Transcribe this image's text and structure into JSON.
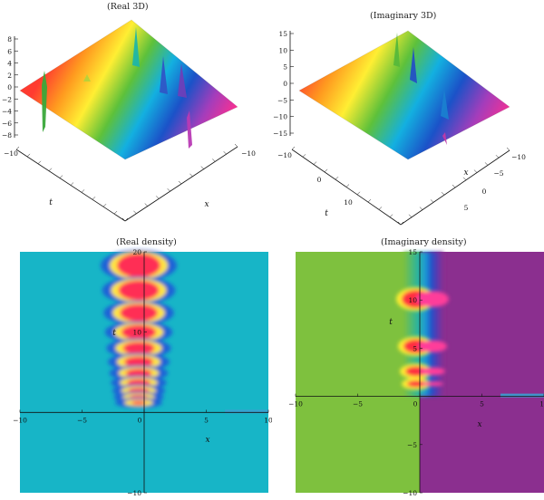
{
  "chart_data": [
    {
      "type": "surface",
      "title": "(Real 3D)",
      "xlabel": "x",
      "ylabel": "t",
      "z_ticks": [
        "8",
        "6",
        "4",
        "2",
        "0",
        "−2",
        "−4",
        "−6",
        "−8"
      ],
      "t_ticks": [
        "−10"
      ],
      "x_ticks": [
        "−10"
      ],
      "palette": [
        "#ff3b30",
        "#ff9a1f",
        "#ffee33",
        "#5ec13a",
        "#13b0e0",
        "#1b52c8",
        "#a43dbb",
        "#ff2f8f"
      ]
    },
    {
      "type": "surface",
      "title": "(Imaginary 3D)",
      "xlabel": "x",
      "ylabel": "t",
      "z_ticks": [
        "15",
        "10",
        "5",
        "0",
        "−5",
        "−10",
        "−15"
      ],
      "t_ticks": [
        "−10",
        "0",
        "10"
      ],
      "x_ticks": [
        "−10",
        "−5",
        "0",
        "5"
      ],
      "palette": [
        "#ff3b30",
        "#ff9a1f",
        "#ffee33",
        "#5ec13a",
        "#13b0e0",
        "#1b52c8",
        "#a43dbb",
        "#ff2f8f"
      ]
    },
    {
      "type": "heatmap",
      "title": "(Real density)",
      "xlabel": "x",
      "ylabel": "t",
      "xlim": [
        -10,
        10
      ],
      "ylim": [
        -10,
        20
      ],
      "x_ticks": [
        "−10",
        "−5",
        "0",
        "5",
        "10"
      ],
      "y_ticks": [
        "20",
        "10",
        "−10"
      ],
      "background": "#17b5c7",
      "lobes": [
        {
          "t": 18.3,
          "h": 1.9
        },
        {
          "t": 15.2,
          "h": 1.6
        },
        {
          "t": 12.4,
          "h": 1.4
        },
        {
          "t": 10.0,
          "h": 1.2
        },
        {
          "t": 8.0,
          "h": 1.05
        },
        {
          "t": 6.3,
          "h": 0.9
        },
        {
          "t": 4.9,
          "h": 0.75
        },
        {
          "t": 3.7,
          "h": 0.65
        },
        {
          "t": 2.7,
          "h": 0.55
        },
        {
          "t": 1.9,
          "h": 0.45
        },
        {
          "t": 1.2,
          "h": 0.38
        }
      ]
    },
    {
      "type": "heatmap",
      "title": "(Imaginary density)",
      "xlabel": "x",
      "ylabel": "t",
      "xlim": [
        -10,
        10
      ],
      "ylim": [
        -10,
        15
      ],
      "x_ticks": [
        "−10",
        "−5",
        "0",
        "5",
        "10"
      ],
      "y_ticks": [
        "15",
        "10",
        "5",
        "−5",
        "−10"
      ],
      "left_color": "#7ec13e",
      "right_color": "#8b2f8f",
      "lobes": [
        {
          "t": 10.1,
          "h": 1.1
        },
        {
          "t": 5.2,
          "h": 0.85
        },
        {
          "t": 2.6,
          "h": 0.6
        },
        {
          "t": 1.3,
          "h": 0.4
        }
      ]
    }
  ]
}
